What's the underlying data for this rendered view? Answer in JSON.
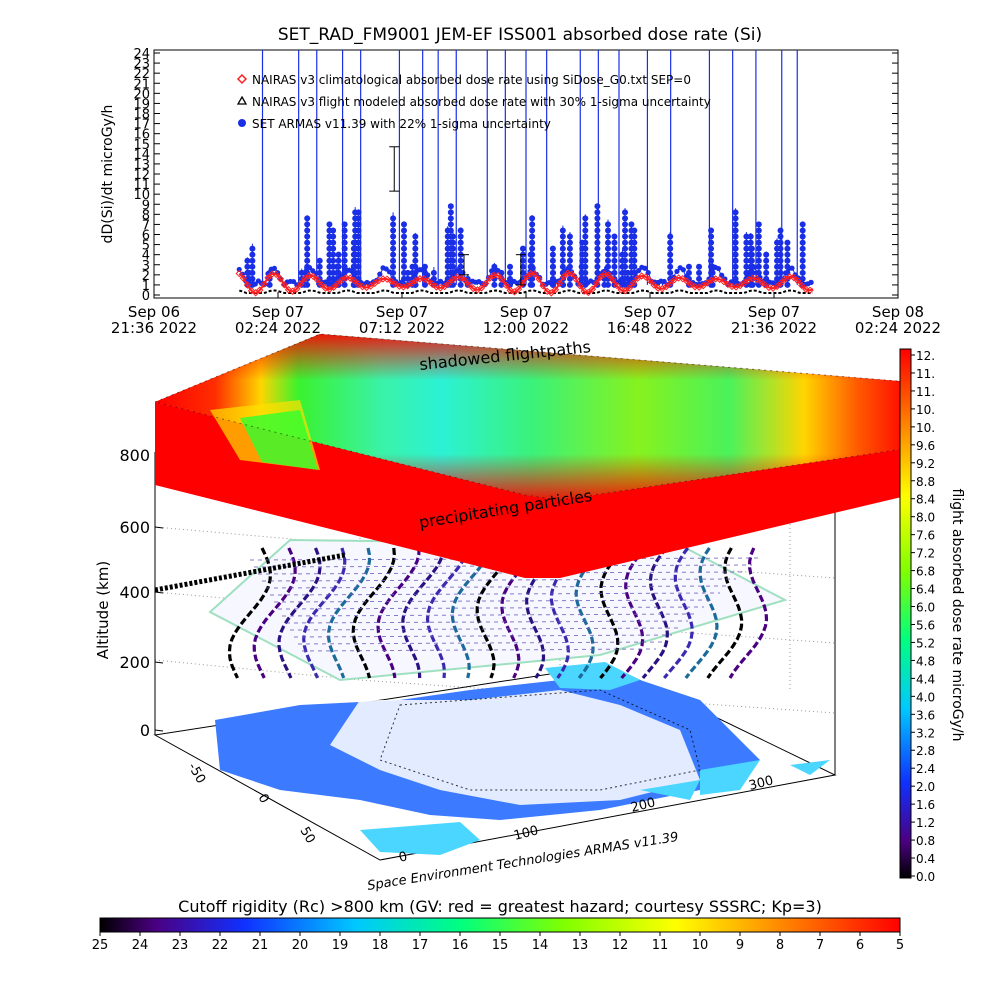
{
  "title": "SET_RAD_FM9001  JEM-EF ISS001 absorbed dose rate (Si)",
  "colors": {
    "series_climatological": "#ff2020",
    "series_flight_modeled": "#000000",
    "series_armas": "#1a2ee6"
  },
  "chart_data": [
    {
      "type": "scatter",
      "ylabel": "dD(Si)/dt microGy/h",
      "ylim": [
        0,
        24
      ],
      "yticks": [
        "0",
        "1",
        "2",
        "3",
        "4",
        "5",
        "6",
        "7",
        "8",
        "9",
        "10",
        "11",
        "12",
        "13",
        "14",
        "15",
        "16",
        "17",
        "18",
        "19",
        "20",
        "21",
        "22",
        "23",
        "24"
      ],
      "xticks": [
        {
          "line1": "Sep 06",
          "line2": "21:36  2022"
        },
        {
          "line1": "Sep 07",
          "line2": "02:24  2022"
        },
        {
          "line1": "Sep 07",
          "line2": "07:12  2022"
        },
        {
          "line1": "Sep 07",
          "line2": "12:00  2022"
        },
        {
          "line1": "Sep 07",
          "line2": "16:48  2022"
        },
        {
          "line1": "Sep 07",
          "line2": "21:36  2022"
        },
        {
          "line1": "Sep 08",
          "line2": "02:24  2022"
        }
      ],
      "x_range_hours": [
        0,
        28.8
      ],
      "legend_position": "top-left",
      "series": [
        {
          "name": "NAIRAS v3 climatological absorbed dose rate using SiDose_G0.txt SEP=0",
          "marker": "diamond",
          "baseline": 1.2,
          "amplitude": 1.0
        },
        {
          "name": "NAIRAS v3 flight modeled absorbed dose rate with 30% 1-sigma uncertainty",
          "marker": "triangle",
          "baseline": 0.2
        },
        {
          "name": "SET ARMAS v11.39 with 22% 1-sigma uncertainty",
          "marker": "circle",
          "baseline": 1.0
        }
      ],
      "data_window_hours": [
        3.3,
        25.5
      ]
    },
    {
      "type": "heatmap",
      "description_labels": {
        "top_layer_upper": "shadowed flightpaths",
        "top_layer_lower": "precipitating particles"
      },
      "zlabel": "Altitude (km)",
      "zticks": [
        "0",
        "200",
        "400",
        "600",
        "800"
      ],
      "lat_ticks": [
        "-50",
        "0",
        "50"
      ],
      "lon_ticks": [
        "0",
        "100",
        "200",
        "300"
      ],
      "credit": "Space Environment Technologies ARMAS v11.39",
      "right_colorbar": {
        "label": "flight absorbed dose rate microGy/h",
        "ticks": [
          "12.",
          "11.",
          "11.",
          "10.",
          "10.",
          "9.6",
          "9.2",
          "8.8",
          "8.4",
          "8.0",
          "7.6",
          "7.2",
          "6.8",
          "6.4",
          "6.0",
          "5.6",
          "5.2",
          "4.8",
          "4.4",
          "4.0",
          "3.6",
          "3.2",
          "2.8",
          "2.4",
          "2.0",
          "1.6",
          "1.2",
          "0.8",
          "0.4",
          "0.0"
        ]
      },
      "bottom_colorbar": {
        "label": "Cutoff rigidity (Rc) >800 km (GV: red = greatest hazard; courtesy SSSRC; Kp=3)",
        "ticks": [
          "25",
          "24",
          "23",
          "22",
          "21",
          "20",
          "19",
          "18",
          "17",
          "16",
          "15",
          "14",
          "13",
          "12",
          "11",
          "10",
          "9",
          "8",
          "7",
          "6",
          "5"
        ]
      }
    }
  ]
}
